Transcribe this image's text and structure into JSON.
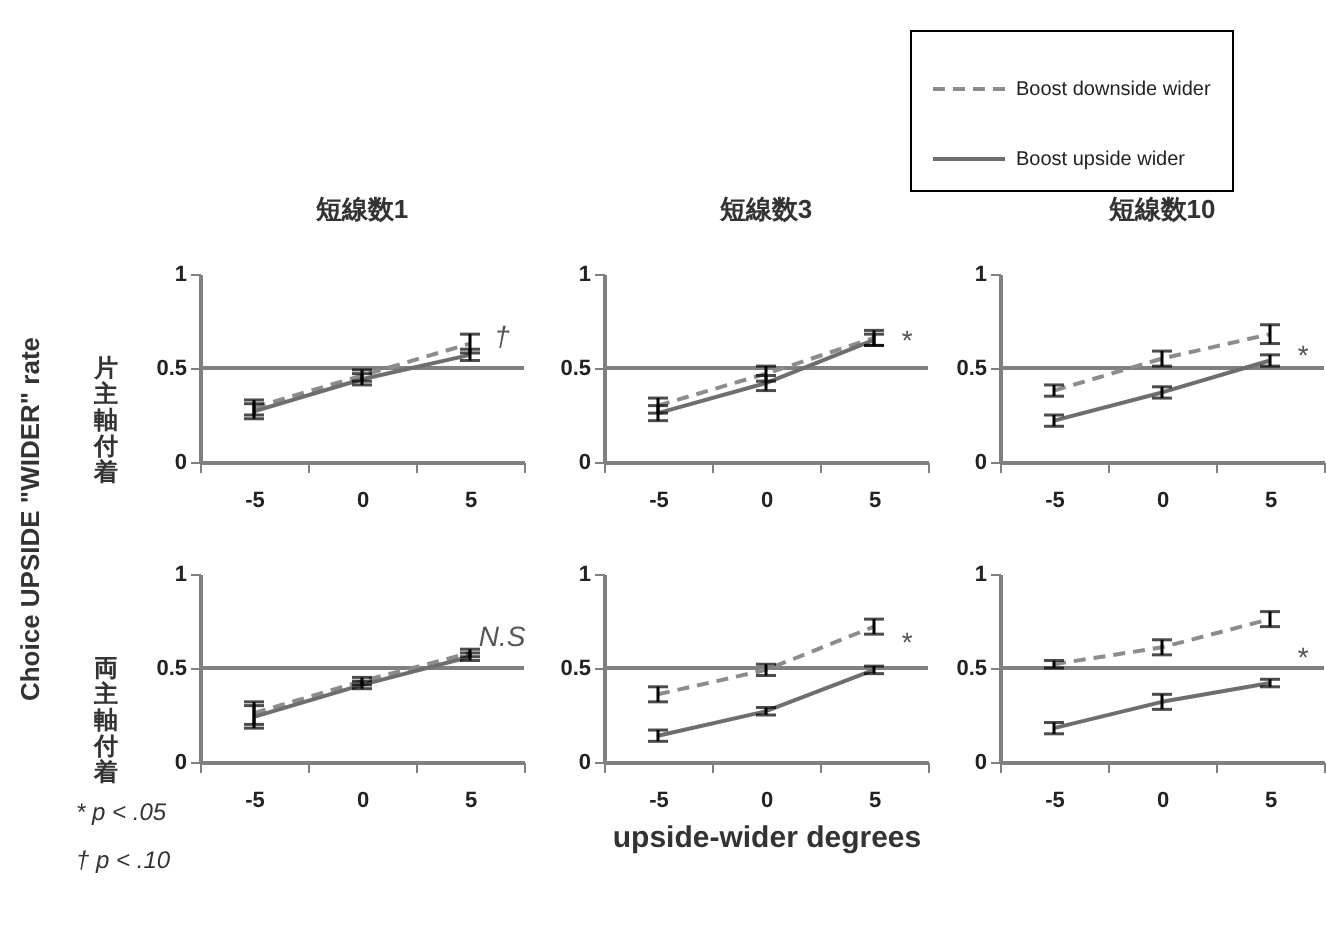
{
  "chart_data": [
    {
      "type": "line",
      "title": "短線数1",
      "ylabel": "Choice UPSIDE \"WIDER\" rate",
      "categories": [
        "-5",
        "0",
        "5"
      ],
      "ylim": [
        0,
        1
      ],
      "yticks": [
        0,
        0.5,
        1
      ],
      "ref_lines": [
        {
          "axis": "y",
          "value": 0.5
        }
      ],
      "series": [
        {
          "color": "#8c8c8c",
          "line_style": "dashed",
          "values": [
            0.29,
            0.46,
            0.63
          ],
          "errors": [
            0.04,
            0.03,
            0.05
          ]
        },
        {
          "color": "#6e6e6e",
          "line_style": "solid",
          "values": [
            0.27,
            0.44,
            0.57
          ],
          "errors": [
            0.04,
            0.03,
            0.03
          ]
        }
      ],
      "annotations": [
        "片主軸付着",
        {
          "text": "†",
          "x": "5",
          "y": 0.66
        }
      ]
    },
    {
      "type": "line",
      "title": "短線数3",
      "categories": [
        "-5",
        "0",
        "5"
      ],
      "ylim": [
        0,
        1
      ],
      "yticks": [
        0,
        0.5,
        1
      ],
      "ref_lines": [
        {
          "axis": "y",
          "value": 0.5
        }
      ],
      "series": [
        {
          "color": "#8c8c8c",
          "line_style": "dashed",
          "values": [
            0.3,
            0.47,
            0.66
          ],
          "errors": [
            0.04,
            0.04,
            0.04
          ]
        },
        {
          "color": "#6e6e6e",
          "line_style": "solid",
          "values": [
            0.26,
            0.42,
            0.65
          ],
          "errors": [
            0.04,
            0.04,
            0.03
          ]
        }
      ],
      "annotations": [
        {
          "text": "*",
          "x": "5",
          "y": 0.64
        }
      ]
    },
    {
      "type": "line",
      "title": "短線数10",
      "categories": [
        "-5",
        "0",
        "5"
      ],
      "ylim": [
        0,
        1
      ],
      "yticks": [
        0,
        0.5,
        1
      ],
      "legend": "top",
      "ref_lines": [
        {
          "axis": "y",
          "value": 0.5
        }
      ],
      "series": [
        {
          "name": "Boost downside wider",
          "color": "#8c8c8c",
          "line_style": "dashed",
          "values": [
            0.38,
            0.55,
            0.68
          ],
          "errors": [
            0.03,
            0.04,
            0.05
          ]
        },
        {
          "name": "Boost upside wider",
          "color": "#6e6e6e",
          "line_style": "solid",
          "values": [
            0.22,
            0.37,
            0.54
          ],
          "errors": [
            0.03,
            0.03,
            0.03
          ]
        }
      ],
      "annotations": [
        {
          "text": "*",
          "x": "5",
          "y": 0.56
        }
      ]
    },
    {
      "type": "line",
      "categories": [
        "-5",
        "0",
        "5"
      ],
      "ylim": [
        0,
        1
      ],
      "yticks": [
        0,
        0.5,
        1
      ],
      "ref_lines": [
        {
          "axis": "y",
          "value": 0.5
        }
      ],
      "series": [
        {
          "color": "#8c8c8c",
          "line_style": "dashed",
          "values": [
            0.26,
            0.43,
            0.58
          ],
          "errors": [
            0.06,
            0.02,
            0.02
          ]
        },
        {
          "color": "#6e6e6e",
          "line_style": "solid",
          "values": [
            0.24,
            0.41,
            0.56
          ],
          "errors": [
            0.06,
            0.02,
            0.02
          ]
        }
      ],
      "annotations": [
        "両主軸付着",
        "* p < .05",
        "† p < .10",
        {
          "text": "N.S",
          "x": "5",
          "y": 0.66
        }
      ]
    },
    {
      "type": "line",
      "xlabel": "upside-wider degrees",
      "categories": [
        "-5",
        "0",
        "5"
      ],
      "ylim": [
        0,
        1
      ],
      "yticks": [
        0,
        0.5,
        1
      ],
      "ref_lines": [
        {
          "axis": "y",
          "value": 0.5
        }
      ],
      "series": [
        {
          "color": "#8c8c8c",
          "line_style": "dashed",
          "values": [
            0.36,
            0.49,
            0.72
          ],
          "errors": [
            0.04,
            0.03,
            0.04
          ]
        },
        {
          "color": "#6e6e6e",
          "line_style": "solid",
          "values": [
            0.14,
            0.27,
            0.49
          ],
          "errors": [
            0.03,
            0.02,
            0.02
          ]
        }
      ],
      "annotations": [
        {
          "text": "*",
          "x": "5",
          "y": 0.63
        }
      ]
    },
    {
      "type": "line",
      "categories": [
        "-5",
        "0",
        "5"
      ],
      "ylim": [
        0,
        1
      ],
      "yticks": [
        0,
        0.5,
        1
      ],
      "ref_lines": [
        {
          "axis": "y",
          "value": 0.5
        }
      ],
      "series": [
        {
          "color": "#8c8c8c",
          "line_style": "dashed",
          "values": [
            0.52,
            0.61,
            0.76
          ],
          "errors": [
            0.02,
            0.04,
            0.04
          ]
        },
        {
          "color": "#6e6e6e",
          "line_style": "solid",
          "values": [
            0.18,
            0.32,
            0.42
          ],
          "errors": [
            0.03,
            0.04,
            0.02
          ]
        }
      ],
      "annotations": [
        {
          "text": "*",
          "x": "5",
          "y": 0.55
        }
      ]
    }
  ]
}
